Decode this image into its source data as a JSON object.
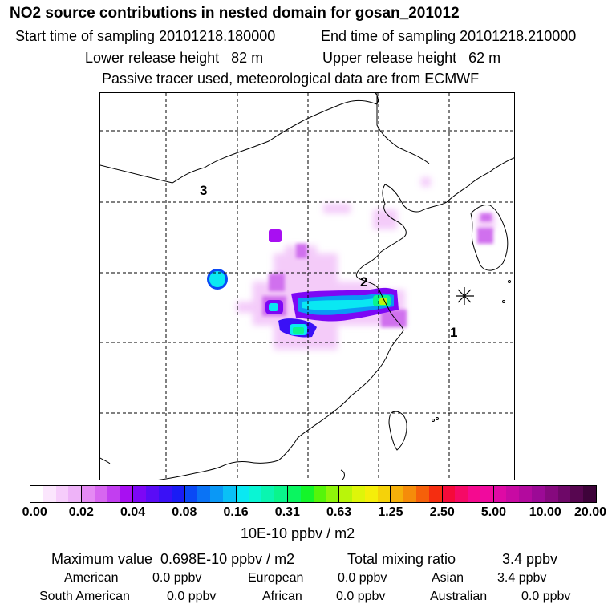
{
  "header": {
    "title": "NO2 source contributions in nested domain for gosan_201012",
    "start_label": "Start time of sampling 20101218.180000",
    "end_label": "End time of sampling 20101218.210000",
    "lower_label": "Lower release height   82 m",
    "upper_label": "Upper release height   62 m",
    "note": "Passive tracer used, meteorological data are from ECMWF"
  },
  "map": {
    "region_labels": [
      "1",
      "2",
      "3"
    ],
    "receptor_marker": "asterisk-icon"
  },
  "colorbar": {
    "ticks": [
      "0.00",
      "0.02",
      "0.04",
      "0.08",
      "0.16",
      "0.31",
      "0.63",
      "1.25",
      "2.50",
      "5.00",
      "10.00",
      "20.00"
    ],
    "unit": "10E-10 ppbv / m2",
    "segments": [
      [
        "#ffffff",
        "#fbe6fd",
        "#f6cdfb",
        "#eeb3f8"
      ],
      [
        "#e58af4",
        "#d766f0",
        "#c23ef0",
        "#a80ff2"
      ],
      [
        "#7d07f5",
        "#5a0cf6",
        "#3a11f6",
        "#1a1cf5"
      ],
      [
        "#0a49f5",
        "#0a73f5",
        "#0a98f6",
        "#0ac0f6"
      ],
      [
        "#0ae8f2",
        "#0af5d4",
        "#0af5b0",
        "#0af58c"
      ],
      [
        "#0af560",
        "#14f52a",
        "#55f50a",
        "#8ef50a"
      ],
      [
        "#b9f50a",
        "#def50a",
        "#f5ee0a",
        "#f5d20a"
      ],
      [
        "#f5b00a",
        "#f58c0a",
        "#f5600a",
        "#f52d10"
      ],
      [
        "#f50a3a",
        "#f50a66",
        "#f50a8f",
        "#f00a9e"
      ],
      [
        "#de0aa5",
        "#c80aa3",
        "#b30a9e",
        "#9c0a96"
      ],
      [
        "#86097e",
        "#6e0868",
        "#570650",
        "#3e033a"
      ]
    ]
  },
  "stats": {
    "maximum": "Maximum value  0.698E-10 ppbv / m2",
    "total_label": "Total mixing ratio",
    "total_value": "3.4 ppbv",
    "rows": [
      [
        {
          "label": "American",
          "value": "0.0 ppbv"
        },
        {
          "label": "European",
          "value": "0.0 ppbv"
        },
        {
          "label": "Asian",
          "value": "3.4 ppbv"
        }
      ],
      [
        {
          "label": "South American",
          "value": "0.0 ppbv"
        },
        {
          "label": "African",
          "value": "0.0 ppbv"
        },
        {
          "label": "Australian",
          "value": "0.0 ppbv"
        }
      ]
    ]
  }
}
